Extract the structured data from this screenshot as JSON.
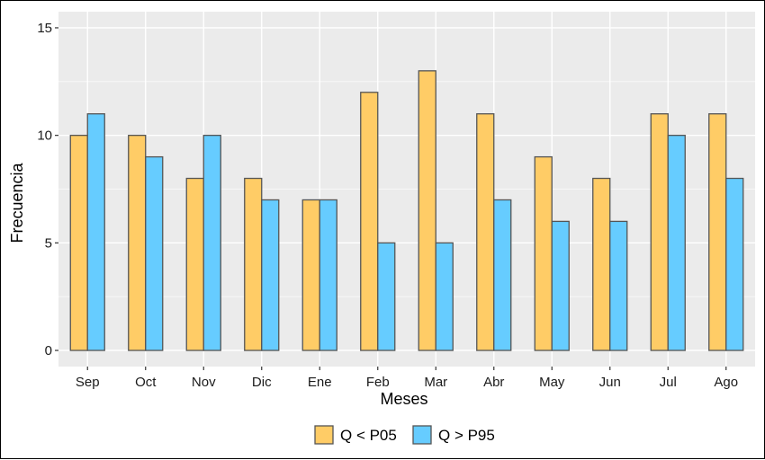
{
  "chart_data": {
    "type": "bar",
    "title": "",
    "xlabel": "Meses",
    "ylabel": "Frecuencia",
    "categories": [
      "Sep",
      "Oct",
      "Nov",
      "Dic",
      "Ene",
      "Feb",
      "Mar",
      "Abr",
      "May",
      "Jun",
      "Jul",
      "Ago"
    ],
    "series": [
      {
        "name": "Q < P05",
        "color": "#FFCC66",
        "values": [
          10,
          10,
          8,
          8,
          7,
          12,
          13,
          11,
          9,
          8,
          11,
          11
        ]
      },
      {
        "name": "Q > P95",
        "color": "#66CCFF",
        "values": [
          11,
          9,
          10,
          7,
          7,
          5,
          5,
          7,
          6,
          6,
          10,
          8
        ]
      }
    ],
    "ylim": [
      0,
      15
    ],
    "yticks": [
      0,
      5,
      10,
      15
    ],
    "grid": true,
    "legend_position": "bottom",
    "panel_background": "#EBEBEB",
    "bar_outline": "#555555"
  }
}
